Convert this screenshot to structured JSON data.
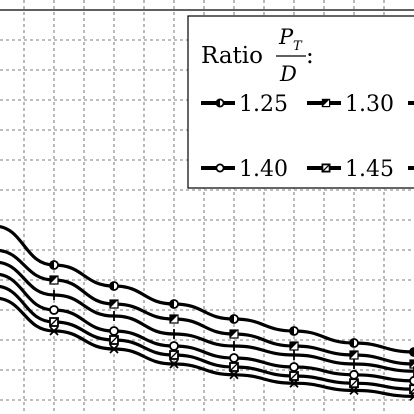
{
  "chart_data": {
    "type": "line",
    "title": "",
    "xlabel": "",
    "ylabel": "",
    "xlim": [
      0,
      7
    ],
    "ylim": [
      0,
      7
    ],
    "grid": true,
    "legend_placement": "top-right",
    "x": [
      0,
      1,
      2,
      3,
      4,
      5,
      6,
      7
    ],
    "series": [
      {
        "name": "1.25",
        "marker": "half-filled-circle",
        "values": [
          3.4,
          2.75,
          2.4,
          2.1,
          1.85,
          1.65,
          1.45,
          1.3
        ]
      },
      {
        "name": "1.30",
        "marker": "bowtie",
        "values": [
          3.0,
          2.5,
          2.1,
          1.85,
          1.6,
          1.4,
          1.25,
          1.1
        ]
      },
      {
        "name": "",
        "marker": "plus",
        "values": [
          2.8,
          2.25,
          1.9,
          1.6,
          1.4,
          1.25,
          1.1,
          0.98
        ]
      },
      {
        "name": "1.40",
        "marker": "circle",
        "values": [
          2.6,
          2.0,
          1.65,
          1.4,
          1.2,
          1.05,
          0.92,
          0.82
        ]
      },
      {
        "name": "1.45",
        "marker": "square",
        "values": [
          2.4,
          1.8,
          1.5,
          1.25,
          1.05,
          0.9,
          0.78,
          0.68
        ]
      },
      {
        "name": "",
        "marker": "cross",
        "values": [
          2.2,
          1.65,
          1.35,
          1.1,
          0.92,
          0.78,
          0.66,
          0.56
        ]
      }
    ],
    "legend": {
      "title_prefix": "Ratio",
      "fraction_numerator": "P",
      "fraction_numerator_sub": "T",
      "fraction_denominator": "D",
      "title_suffix": ":",
      "entries": [
        "1.25",
        "1.30",
        "1.40",
        "1.45"
      ]
    }
  }
}
